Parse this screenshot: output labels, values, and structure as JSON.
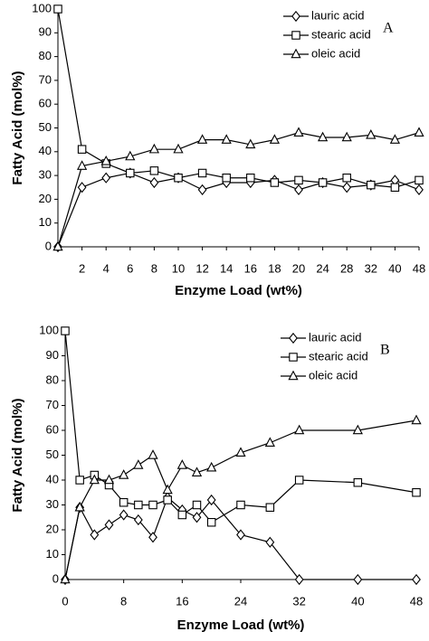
{
  "chart_data": [
    {
      "type": "line",
      "panel_label": "A",
      "xlabel": "Enzyme Load (wt%)",
      "ylabel": "Fatty Acid (mol%)",
      "categories": [
        null,
        2,
        4,
        6,
        8,
        10,
        12,
        14,
        16,
        18,
        20,
        24,
        28,
        32,
        40,
        48
      ],
      "ylim": [
        0,
        100
      ],
      "yticks": [
        0,
        10,
        20,
        30,
        40,
        50,
        60,
        70,
        80,
        90,
        100
      ],
      "legend": "upper right",
      "series": [
        {
          "name": "lauric acid",
          "color": "#000000",
          "marker": "diamond",
          "values": [
            0,
            25,
            29,
            31,
            27,
            29,
            24,
            27,
            27,
            28,
            24,
            27,
            25,
            26,
            28,
            24
          ]
        },
        {
          "name": "stearic acid",
          "color": "#000000",
          "marker": "square",
          "values": [
            100,
            41,
            35,
            31,
            32,
            29,
            31,
            29,
            29,
            27,
            28,
            27,
            29,
            26,
            25,
            28
          ]
        },
        {
          "name": "oleic acid",
          "color": "#000000",
          "marker": "triangle",
          "values": [
            0,
            34,
            36,
            38,
            41,
            41,
            45,
            45,
            43,
            45,
            48,
            46,
            46,
            47,
            45,
            48
          ]
        }
      ]
    },
    {
      "type": "line",
      "panel_label": "B",
      "xlabel": "Enzyme Load (wt%)",
      "ylabel": "Fatty Acid (mol%)",
      "x": [
        0,
        2,
        4,
        6,
        8,
        10,
        12,
        14,
        16,
        18,
        20,
        24,
        28,
        32,
        40,
        48
      ],
      "xlim": [
        0,
        48
      ],
      "xticks": [
        0,
        8,
        16,
        24,
        32,
        40,
        48
      ],
      "ylim": [
        0,
        100
      ],
      "yticks": [
        0,
        10,
        20,
        30,
        40,
        50,
        60,
        70,
        80,
        90,
        100
      ],
      "legend": "upper right",
      "series": [
        {
          "name": "lauric acid",
          "color": "#000000",
          "marker": "diamond",
          "values": [
            0,
            29,
            18,
            22,
            26,
            24,
            17,
            33,
            28,
            25,
            32,
            18,
            15,
            0,
            0,
            0
          ]
        },
        {
          "name": "stearic acid",
          "color": "#000000",
          "marker": "square",
          "values": [
            100,
            40,
            42,
            38,
            31,
            30,
            30,
            32,
            26,
            30,
            23,
            30,
            29,
            40,
            39,
            35
          ]
        },
        {
          "name": "oleic acid",
          "color": "#000000",
          "marker": "triangle",
          "values": [
            0,
            29,
            40,
            40,
            42,
            46,
            50,
            36,
            46,
            43,
            45,
            51,
            55,
            60,
            60,
            64
          ]
        }
      ]
    }
  ]
}
